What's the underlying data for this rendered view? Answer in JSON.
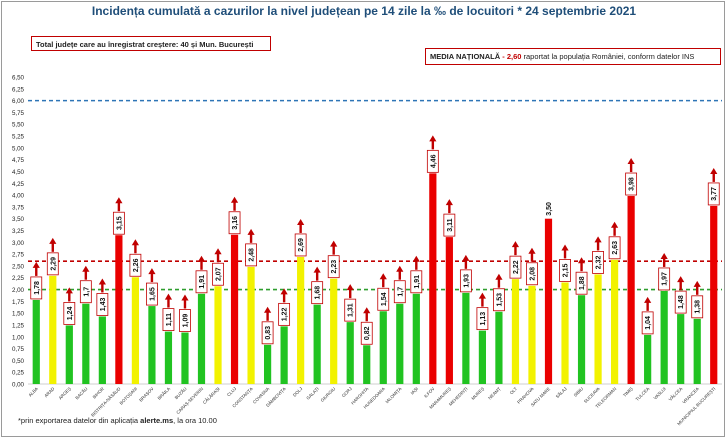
{
  "title": "Incidența cumulată a cazurilor la nivel județean pe 14 zile la ‰ de locuitori * 24 septembrie 2021",
  "note": "Total județe care au înregistrat creștere: 40 și Mun. București",
  "media": {
    "label": "MEDIA NAȚIONALĂ",
    "value": "- 2,60",
    "suffix": "raportat la populația României, conform datelor INS"
  },
  "footnote": {
    "prefix": "*prin exportarea datelor din aplicația ",
    "app": "alerte.ms",
    "suffix": ", la ora 10.00"
  },
  "colors": {
    "green": "#21c321",
    "yellow": "#f2f200",
    "red": "#ea0000",
    "arrow": "#c00000",
    "line_6": "#2e75b6",
    "line_national": "#c00000",
    "line_2": "#2e9e2e"
  },
  "chart_data": {
    "type": "bar",
    "ylim": [
      0,
      6.5
    ],
    "yticks": [
      "0,00",
      "0,25",
      "0,50",
      "0,75",
      "1,00",
      "1,25",
      "1,50",
      "1,75",
      "2,00",
      "2,25",
      "2,50",
      "2,75",
      "3,00",
      "3,25",
      "3,50",
      "3,75",
      "4,00",
      "4,25",
      "4,50",
      "4,75",
      "5,00",
      "5,25",
      "5,50",
      "5,75",
      "6,00",
      "6,25",
      "6,50"
    ],
    "reference_lines": [
      {
        "value": 6.0,
        "color": "blue"
      },
      {
        "value": 2.6,
        "color": "red"
      },
      {
        "value": 2.0,
        "color": "green"
      }
    ],
    "categories": [
      "ALBA",
      "ARAD",
      "ARGEȘ",
      "BACĂU",
      "BIHOR",
      "BISTRIȚA-NĂSĂUD",
      "BOTOȘANI",
      "BRAȘOV",
      "BRĂILA",
      "BUZĂU",
      "CARAȘ-SEVERIN",
      "CĂLĂRAȘI",
      "CLUJ",
      "CONSTANȚA",
      "COVASNA",
      "DÂMBOVIȚA",
      "DOLJ",
      "GALAȚI",
      "GIURGIU",
      "GORJ",
      "HARGHITA",
      "HUNEDOARA",
      "IALOMIȚA",
      "IAȘI",
      "ILFOV",
      "MARAMUREȘ",
      "MEHEDINȚI",
      "MUREȘ",
      "NEAMȚ",
      "OLT",
      "PRAHOVA",
      "SATU MARE",
      "SĂLAJ",
      "SIBIU",
      "SUCEAVA",
      "TELEORMAN",
      "TIMIȘ",
      "TULCEA",
      "VASLUI",
      "VÂLCEA",
      "VRANCEA",
      "MUNICIPIUL BUCUREȘTI"
    ],
    "values": [
      1.78,
      2.29,
      1.24,
      1.7,
      1.43,
      3.15,
      2.26,
      1.65,
      1.11,
      1.09,
      1.91,
      2.07,
      3.16,
      2.48,
      0.83,
      1.22,
      2.69,
      1.68,
      2.23,
      1.31,
      0.82,
      1.54,
      1.7,
      1.91,
      4.46,
      3.11,
      1.93,
      1.13,
      1.53,
      2.22,
      2.08,
      3.5,
      2.15,
      1.88,
      2.32,
      2.63,
      3.98,
      1.04,
      1.97,
      1.48,
      1.38,
      3.77
    ],
    "labels": [
      "1,78",
      "2,29",
      "1,24",
      "1,7",
      "1,43",
      "3,15",
      "2,26",
      "1,65",
      "1,11",
      "1,09",
      "1,91",
      "2,07",
      "3,16",
      "2,48",
      "0,83",
      "1,22",
      "2,69",
      "1,68",
      "2,23",
      "1,31",
      "0,82",
      "1,54",
      "1,7",
      "1,91",
      "4,46",
      "3,11",
      "1,93",
      "1,13",
      "1,53",
      "2,22",
      "2,08",
      "3,50",
      "2,15",
      "1,88",
      "2,32",
      "2,63",
      "3,98",
      "1,04",
      "1,97",
      "1,48",
      "1,38",
      "3,77"
    ],
    "boxed_label": [
      true,
      true,
      true,
      true,
      true,
      true,
      true,
      true,
      true,
      true,
      true,
      true,
      true,
      true,
      true,
      true,
      true,
      true,
      true,
      true,
      true,
      true,
      true,
      true,
      true,
      true,
      true,
      true,
      true,
      true,
      true,
      false,
      true,
      true,
      true,
      true,
      true,
      true,
      true,
      true,
      true,
      true
    ],
    "increase_arrow": [
      true,
      true,
      true,
      true,
      true,
      true,
      true,
      true,
      true,
      true,
      true,
      true,
      true,
      true,
      true,
      true,
      true,
      true,
      true,
      true,
      true,
      true,
      true,
      true,
      true,
      true,
      true,
      true,
      true,
      true,
      true,
      false,
      true,
      true,
      true,
      true,
      true,
      true,
      true,
      true,
      true,
      true
    ],
    "color_rule": "red if value > 3.0; yellow if 2.0 < value <= 3.0; green if value <= 2.0"
  }
}
